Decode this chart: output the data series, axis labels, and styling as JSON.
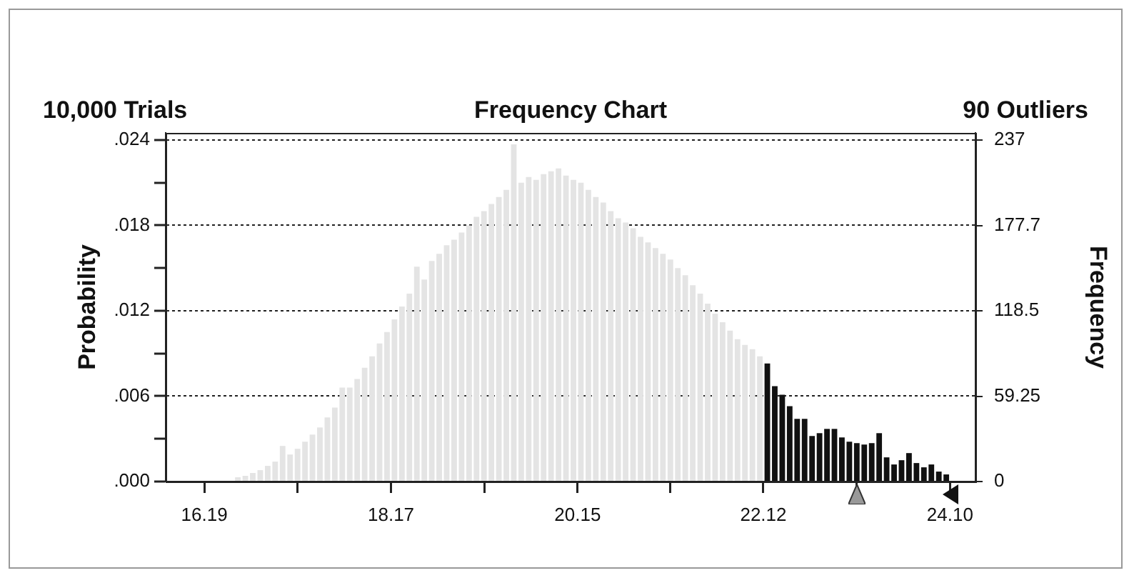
{
  "chart_data": {
    "type": "histogram",
    "title": "Frequency Chart",
    "annotations": [
      "10,000 Trials",
      "90 Outliers"
    ],
    "ylabel": "Probability",
    "y2label": "Frequency",
    "bins": [
      16.19,
      16.2691,
      16.3482,
      16.4273,
      16.5064,
      16.5855,
      16.6646,
      16.7437,
      16.8228,
      16.9019,
      16.981,
      17.0601,
      17.1392,
      17.2183,
      17.2974,
      17.3765,
      17.4556,
      17.5347,
      17.6138,
      17.6929,
      17.772,
      17.8511,
      17.9302,
      18.0093,
      18.0884,
      18.1675,
      18.2466,
      18.3257,
      18.4048,
      18.4839,
      18.563,
      18.6421,
      18.7212,
      18.8003,
      18.8794,
      18.9585,
      19.0376,
      19.1167,
      19.1958,
      19.2749,
      19.354,
      19.4331,
      19.5122,
      19.5913,
      19.6704,
      19.7495,
      19.8286,
      19.9077,
      19.9868,
      20.0659,
      20.145,
      20.2241,
      20.3032,
      20.3823,
      20.4614,
      20.5405,
      20.6196,
      20.6987,
      20.7778,
      20.8569,
      20.936,
      21.0151,
      21.0942,
      21.1733,
      21.2524,
      21.3315,
      21.4106,
      21.4897,
      21.5688,
      21.6479,
      21.727,
      21.8061,
      21.8852,
      21.9643,
      22.0434,
      22.1225,
      22.2016,
      22.2807,
      22.3598,
      22.4389,
      22.518,
      22.5971,
      22.6762,
      22.7553,
      22.8344,
      22.9135,
      22.9926,
      23.0717,
      23.1508,
      23.2299,
      23.309,
      23.3881,
      23.4672,
      23.5463,
      23.6254,
      23.7045,
      23.7836,
      23.8627,
      23.9418,
      24.0209,
      24.1
    ],
    "values": [
      0,
      0,
      0,
      0,
      0.0003,
      0.0004,
      0.0006,
      0.0008,
      0.0011,
      0.0014,
      0.0025,
      0.0019,
      0.0023,
      0.0028,
      0.0033,
      0.0038,
      0.0045,
      0.0052,
      0.0066,
      0.0066,
      0.0072,
      0.008,
      0.0088,
      0.0097,
      0.0105,
      0.0114,
      0.0123,
      0.0132,
      0.0151,
      0.0142,
      0.0155,
      0.016,
      0.0166,
      0.017,
      0.0175,
      0.018,
      0.0186,
      0.019,
      0.0195,
      0.02,
      0.0205,
      0.0237,
      0.021,
      0.0214,
      0.0212,
      0.0216,
      0.0218,
      0.022,
      0.0215,
      0.0212,
      0.021,
      0.0205,
      0.02,
      0.0196,
      0.019,
      0.0185,
      0.0182,
      0.0178,
      0.0172,
      0.0168,
      0.0164,
      0.016,
      0.0156,
      0.015,
      0.0145,
      0.0138,
      0.0132,
      0.0125,
      0.0118,
      0.0112,
      0.0106,
      0.01,
      0.0096,
      0.0093,
      0.0088,
      0.0083,
      0.0067,
      0.0061,
      0.0053,
      0.0044,
      0.0044,
      0.0032,
      0.0034,
      0.0037,
      0.0037,
      0.0031,
      0.0028,
      0.0027,
      0.0026,
      0.0027,
      0.0034,
      0.0017,
      0.0012,
      0.0015,
      0.002,
      0.0013,
      0.001,
      0.0012,
      0.0007,
      0.0005
    ],
    "colors": [
      "#e4e4e4",
      "#e4e4e4",
      "#e4e4e4",
      "#e4e4e4",
      "#e4e4e4",
      "#e4e4e4",
      "#e4e4e4",
      "#e4e4e4",
      "#e4e4e4",
      "#e4e4e4",
      "#e4e4e4",
      "#e4e4e4",
      "#e4e4e4",
      "#e4e4e4",
      "#e4e4e4",
      "#e4e4e4",
      "#e4e4e4",
      "#e4e4e4",
      "#e4e4e4",
      "#e4e4e4",
      "#e4e4e4",
      "#e4e4e4",
      "#e4e4e4",
      "#e4e4e4",
      "#e4e4e4",
      "#e4e4e4",
      "#e4e4e4",
      "#e4e4e4",
      "#e4e4e4",
      "#e4e4e4",
      "#e4e4e4",
      "#e4e4e4",
      "#e4e4e4",
      "#e4e4e4",
      "#e4e4e4",
      "#e4e4e4",
      "#e4e4e4",
      "#e4e4e4",
      "#e4e4e4",
      "#e4e4e4",
      "#e4e4e4",
      "#e4e4e4",
      "#e4e4e4",
      "#e4e4e4",
      "#e4e4e4",
      "#e4e4e4",
      "#e4e4e4",
      "#e4e4e4",
      "#e4e4e4",
      "#e4e4e4",
      "#e4e4e4",
      "#e4e4e4",
      "#e4e4e4",
      "#e4e4e4",
      "#e4e4e4",
      "#e4e4e4",
      "#e4e4e4",
      "#e4e4e4",
      "#e4e4e4",
      "#e4e4e4",
      "#e4e4e4",
      "#e4e4e4",
      "#e4e4e4",
      "#e4e4e4",
      "#e4e4e4",
      "#e4e4e4",
      "#e4e4e4",
      "#e4e4e4",
      "#e4e4e4",
      "#e4e4e4",
      "#e4e4e4",
      "#e4e4e4",
      "#e4e4e4",
      "#e4e4e4",
      "#e4e4e4",
      "#111111",
      "#111111",
      "#111111",
      "#111111",
      "#111111",
      "#111111",
      "#111111",
      "#111111",
      "#111111",
      "#111111",
      "#111111",
      "#111111",
      "#111111",
      "#111111",
      "#111111",
      "#111111",
      "#111111",
      "#111111",
      "#111111",
      "#111111",
      "#111111",
      "#111111",
      "#111111",
      "#111111",
      "#111111"
    ],
    "xlim": [
      15.78,
      24.37
    ],
    "xticks": [
      16.19,
      {
        "value": 17.18,
        "label": null
      },
      18.17,
      {
        "value": 19.16,
        "label": null
      },
      20.15,
      {
        "value": 21.135,
        "label": null
      },
      22.12,
      {
        "value": 23.11,
        "label": null
      },
      {
        "value": 24.1,
        "label": "24.10"
      }
    ],
    "ylim": [
      0,
      0.0245
    ],
    "yticks": [
      {
        "value": 0,
        "label": ".000"
      },
      {
        "value": 0.003,
        "label": null
      },
      {
        "value": 0.006,
        "label": ".006"
      },
      {
        "value": 0.009,
        "label": null
      },
      {
        "value": 0.012,
        "label": ".012"
      },
      {
        "value": 0.015,
        "label": null
      },
      {
        "value": 0.018,
        "label": ".018"
      },
      {
        "value": 0.021,
        "label": null
      },
      {
        "value": 0.024,
        "label": ".024"
      }
    ],
    "y2lim": [
      0,
      242
    ],
    "y2ticks": [
      0,
      59.25,
      118.5,
      177.7,
      237
    ],
    "grid": "y",
    "legend": false
  }
}
